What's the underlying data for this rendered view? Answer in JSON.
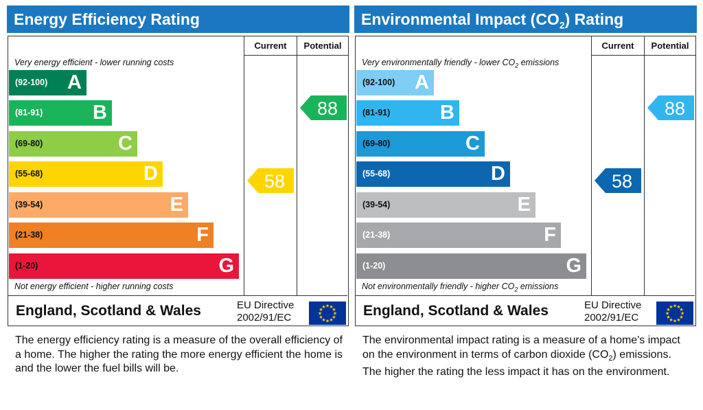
{
  "chart_data": [
    {
      "type": "bar",
      "title": "Energy Efficiency Rating",
      "columns": [
        "Current",
        "Potential"
      ],
      "top_note": "Very energy efficient - lower running costs",
      "bottom_note": "Not energy efficient - higher running costs",
      "bands": [
        {
          "range": "(92-100)",
          "letter": "A",
          "color": "#008054"
        },
        {
          "range": "(81-91)",
          "letter": "B",
          "color": "#19b459"
        },
        {
          "range": "(69-80)",
          "letter": "C",
          "color": "#8dce46"
        },
        {
          "range": "(55-68)",
          "letter": "D",
          "color": "#ffd500"
        },
        {
          "range": "(39-54)",
          "letter": "E",
          "color": "#fcaa65"
        },
        {
          "range": "(21-38)",
          "letter": "F",
          "color": "#ef8023"
        },
        {
          "range": "(1-20)",
          "letter": "G",
          "color": "#e9153b"
        }
      ],
      "current": {
        "value": 58,
        "band": "D",
        "color": "#ffd500"
      },
      "potential": {
        "value": 88,
        "band": "B",
        "color": "#19b459"
      },
      "country": "England, Scotland & Wales",
      "directive_line1": "EU Directive",
      "directive_line2": "2002/91/EC",
      "description": "The energy efficiency rating is a measure of the overall efficiency of a home. The higher the rating the more energy efficient the home is and the lower the fuel bills will be."
    },
    {
      "type": "bar",
      "title": "Environmental Impact (CO2) Rating",
      "columns": [
        "Current",
        "Potential"
      ],
      "top_note": "Very environmentally friendly - lower CO2 emissions",
      "bottom_note": "Not environmentally friendly - higher CO2 emissions",
      "bands": [
        {
          "range": "(92-100)",
          "letter": "A",
          "color": "#7dcdf5"
        },
        {
          "range": "(81-91)",
          "letter": "B",
          "color": "#31b5ef"
        },
        {
          "range": "(69-80)",
          "letter": "C",
          "color": "#1c9ad8"
        },
        {
          "range": "(55-68)",
          "letter": "D",
          "color": "#0c66b0"
        },
        {
          "range": "(39-54)",
          "letter": "E",
          "color": "#bcbec0"
        },
        {
          "range": "(21-38)",
          "letter": "F",
          "color": "#a6a8ab"
        },
        {
          "range": "(1-20)",
          "letter": "G",
          "color": "#8c8e91"
        }
      ],
      "current": {
        "value": 58,
        "band": "D",
        "color": "#0c66b0"
      },
      "potential": {
        "value": 88,
        "band": "B",
        "color": "#31b5ef"
      },
      "country": "England, Scotland & Wales",
      "directive_line1": "EU Directive",
      "directive_line2": "2002/91/EC",
      "description": "The environmental impact rating is a measure of a home's impact on the environment in terms of carbon dioxide (CO2) emissions. The higher the rating the less impact it has on the environment."
    }
  ]
}
